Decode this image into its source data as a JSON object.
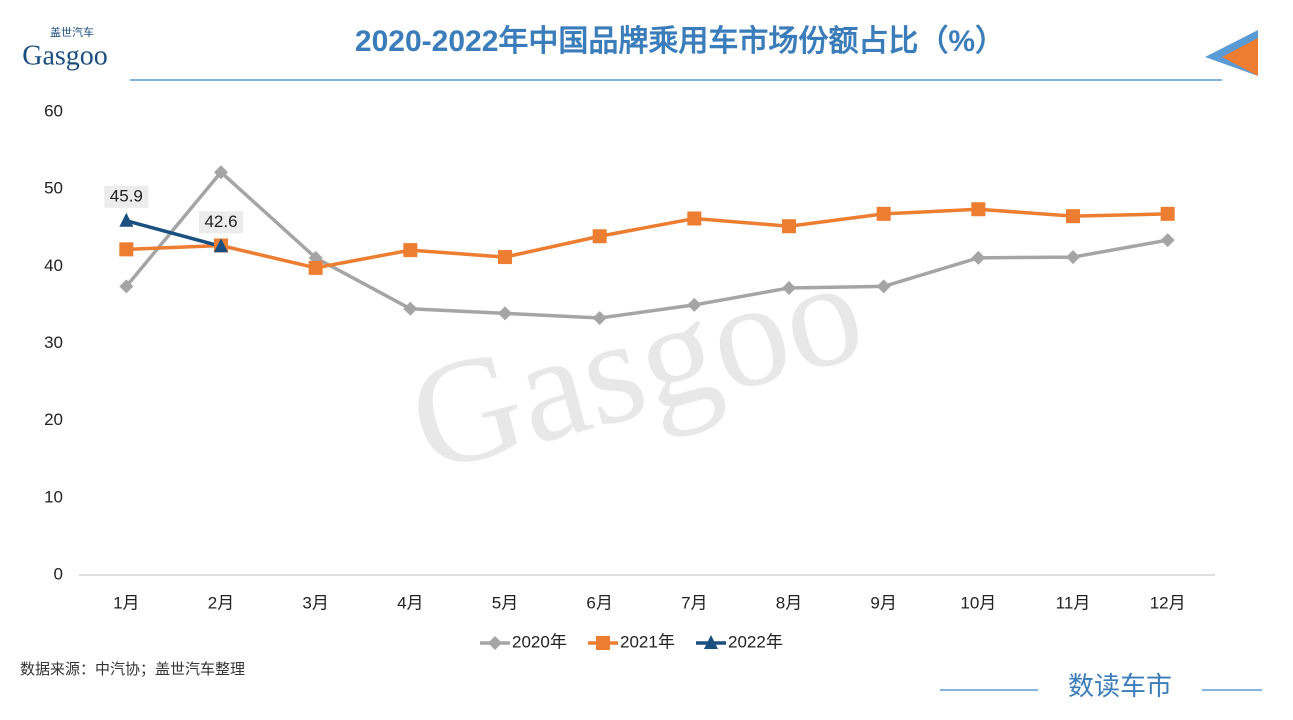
{
  "chart_data": {
    "type": "line",
    "title": "2020-2022年中国品牌乘用车市场份额占比（%）",
    "logo": "Gasgoo",
    "logo_sub": "盖世汽车",
    "watermark": "Gasgoo",
    "source": "数据来源：中汽协；盖世汽车整理",
    "brand": "数读车市",
    "categories": [
      "1月",
      "2月",
      "3月",
      "4月",
      "5月",
      "6月",
      "7月",
      "8月",
      "9月",
      "10月",
      "11月",
      "12月"
    ],
    "series": [
      {
        "name": "2020年",
        "color": "#a5a5a5",
        "marker": "diamond",
        "values": [
          37.4,
          52.2,
          41.1,
          34.5,
          33.9,
          33.3,
          35.0,
          37.2,
          37.4,
          41.1,
          41.2,
          43.4
        ]
      },
      {
        "name": "2021年",
        "color": "#ed7d31",
        "marker": "square",
        "values": [
          42.2,
          42.7,
          39.8,
          42.1,
          41.2,
          43.9,
          46.2,
          45.2,
          46.8,
          47.4,
          46.5,
          46.8
        ]
      },
      {
        "name": "2022年",
        "color": "#1b4f80",
        "marker": "triangle",
        "data_labels": true,
        "values": [
          45.9,
          42.6,
          null,
          null,
          null,
          null,
          null,
          null,
          null,
          null,
          null,
          null
        ]
      }
    ],
    "ylim": [
      0,
      60
    ],
    "yticks": [
      0,
      10,
      20,
      30,
      40,
      50,
      60
    ],
    "grid": false,
    "legend": "bottom"
  }
}
